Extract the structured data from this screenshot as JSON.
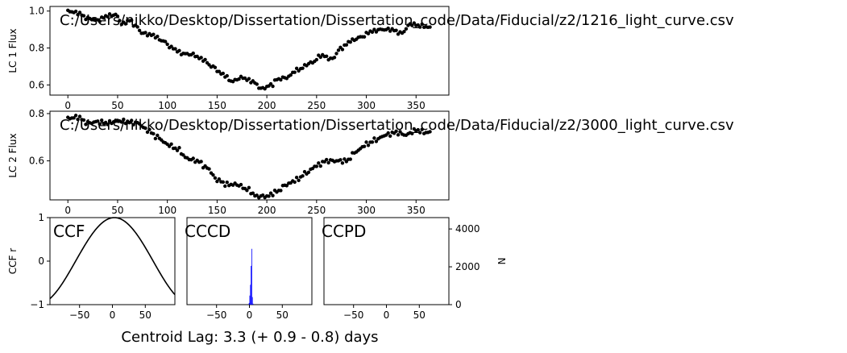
{
  "chart_data": [
    {
      "type": "scatter",
      "id": "lc1",
      "title": "C:/Users/nikko/Desktop/Dissertation/Dissertation_code/Data/Fiducial/z2/1216_light_curve.csv",
      "ylabel": "LC 1 Flux",
      "xlim": [
        -18,
        383
      ],
      "ylim": [
        0.545,
        1.025
      ],
      "xticks": [
        0,
        50,
        100,
        150,
        200,
        250,
        300,
        350
      ],
      "yticks": [
        0.6,
        0.8,
        1.0
      ],
      "ytick_labels": [
        "0.6",
        "0.8",
        "1.0"
      ],
      "control_points": [
        [
          0,
          1.0
        ],
        [
          10,
          0.99
        ],
        [
          20,
          0.96
        ],
        [
          30,
          0.95
        ],
        [
          40,
          0.975
        ],
        [
          48,
          0.98
        ],
        [
          55,
          0.93
        ],
        [
          62,
          0.95
        ],
        [
          68,
          0.92
        ],
        [
          75,
          0.88
        ],
        [
          85,
          0.87
        ],
        [
          95,
          0.84
        ],
        [
          105,
          0.8
        ],
        [
          115,
          0.77
        ],
        [
          125,
          0.765
        ],
        [
          135,
          0.74
        ],
        [
          145,
          0.7
        ],
        [
          155,
          0.66
        ],
        [
          165,
          0.62
        ],
        [
          175,
          0.64
        ],
        [
          185,
          0.62
        ],
        [
          195,
          0.58
        ],
        [
          205,
          0.6
        ],
        [
          210,
          0.63
        ],
        [
          220,
          0.64
        ],
        [
          230,
          0.68
        ],
        [
          245,
          0.72
        ],
        [
          255,
          0.76
        ],
        [
          265,
          0.74
        ],
        [
          275,
          0.8
        ],
        [
          285,
          0.84
        ],
        [
          295,
          0.86
        ],
        [
          305,
          0.89
        ],
        [
          315,
          0.9
        ],
        [
          325,
          0.9
        ],
        [
          335,
          0.88
        ],
        [
          345,
          0.93
        ],
        [
          355,
          0.92
        ],
        [
          365,
          0.91
        ]
      ]
    },
    {
      "type": "scatter",
      "id": "lc2",
      "title": "C:/Users/nikko/Desktop/Dissertation/Dissertation_code/Data/Fiducial/z2/3000_light_curve.csv",
      "ylabel": "LC 2 Flux",
      "xlim": [
        -18,
        383
      ],
      "ylim": [
        0.435,
        0.81
      ],
      "xticks": [
        0,
        50,
        100,
        150,
        200,
        250,
        300,
        350
      ],
      "yticks": [
        0.6,
        0.8
      ],
      "ytick_labels": [
        "0.6",
        "0.8"
      ],
      "control_points": [
        [
          0,
          0.78
        ],
        [
          10,
          0.785
        ],
        [
          20,
          0.76
        ],
        [
          30,
          0.765
        ],
        [
          40,
          0.76
        ],
        [
          50,
          0.77
        ],
        [
          60,
          0.765
        ],
        [
          70,
          0.76
        ],
        [
          80,
          0.73
        ],
        [
          90,
          0.7
        ],
        [
          100,
          0.67
        ],
        [
          110,
          0.65
        ],
        [
          120,
          0.61
        ],
        [
          130,
          0.6
        ],
        [
          140,
          0.57
        ],
        [
          150,
          0.52
        ],
        [
          160,
          0.5
        ],
        [
          170,
          0.5
        ],
        [
          180,
          0.48
        ],
        [
          190,
          0.45
        ],
        [
          200,
          0.45
        ],
        [
          210,
          0.47
        ],
        [
          220,
          0.5
        ],
        [
          230,
          0.52
        ],
        [
          240,
          0.55
        ],
        [
          250,
          0.58
        ],
        [
          260,
          0.6
        ],
        [
          270,
          0.6
        ],
        [
          280,
          0.6
        ],
        [
          290,
          0.64
        ],
        [
          300,
          0.67
        ],
        [
          310,
          0.69
        ],
        [
          320,
          0.71
        ],
        [
          330,
          0.72
        ],
        [
          340,
          0.71
        ],
        [
          350,
          0.73
        ],
        [
          360,
          0.72
        ],
        [
          365,
          0.72
        ]
      ]
    },
    {
      "type": "line",
      "id": "ccf",
      "title": "CCF",
      "ylabel": "CCF r",
      "xlim": [
        -95,
        95
      ],
      "ylim": [
        -1,
        1
      ],
      "xticks": [
        -50,
        0,
        50
      ],
      "yticks": [
        -1,
        0,
        1
      ],
      "ytick_labels": [
        "−1",
        "0",
        "1"
      ],
      "center": 3,
      "width": 118
    },
    {
      "type": "bar",
      "id": "cccd",
      "title": "CCCD",
      "xlim": [
        -95,
        95
      ],
      "ylim": [
        0,
        4600
      ],
      "xticks": [
        -50,
        0,
        50
      ],
      "bars": [
        [
          -0.5,
          90
        ],
        [
          0.5,
          480
        ],
        [
          1.5,
          1050
        ],
        [
          2.5,
          2050
        ],
        [
          3.5,
          2950
        ],
        [
          4.5,
          400
        ],
        [
          5.5,
          50
        ]
      ],
      "bar_color": "#0000ff"
    },
    {
      "type": "bar",
      "id": "ccpd",
      "title": "CCPD",
      "ylabel": "N",
      "xlim": [
        -95,
        95
      ],
      "ylim": [
        0,
        4600
      ],
      "xticks": [
        -50,
        0,
        50
      ],
      "yticks": [
        0,
        2000,
        4000
      ],
      "ytick_labels": [
        "0",
        "2000",
        "4000"
      ],
      "bars": []
    }
  ],
  "footer": {
    "centroid_label": "Centroid Lag:   3.3 (+  0.9 -  0.8) days"
  },
  "colors": {
    "points": "#000000",
    "bars": "#0000ff"
  }
}
